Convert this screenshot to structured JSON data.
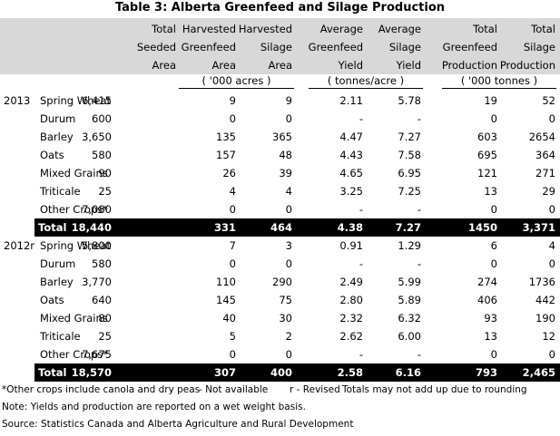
{
  "title": "Table 3:  Alberta Greenfeed and Silage Production",
  "headers": [
    [
      "",
      "Total",
      "Seeded",
      "Area"
    ],
    [
      "",
      "Harvested",
      "Greenfeed",
      "Area"
    ],
    [
      "",
      "Harvested",
      "Silage",
      "Area"
    ],
    [
      "",
      "Average",
      "Greenfeed",
      "Yield"
    ],
    [
      "",
      "Average",
      "Silage",
      "Yield"
    ],
    [
      "",
      "Total",
      "Greenfeed",
      "Production"
    ],
    [
      "",
      "Total",
      "Silage",
      "Production"
    ]
  ],
  "units": {
    "acres": "( '000 acres )",
    "yield": "( tonnes/acre )",
    "tonnes": "( '000 tonnes )"
  },
  "blocks": [
    {
      "year": "2013",
      "rows": [
        [
          "Spring Wheat",
          "6,415",
          "9",
          "9",
          "2.11",
          "5.78",
          "19",
          "52"
        ],
        [
          "Durum",
          "600",
          "0",
          "0",
          "-",
          "-",
          "0",
          "0"
        ],
        [
          "Barley",
          "3,650",
          "135",
          "365",
          "4.47",
          "7.27",
          "603",
          "2654"
        ],
        [
          "Oats",
          "580",
          "157",
          "48",
          "4.43",
          "7.58",
          "695",
          "364"
        ],
        [
          "Mixed Grains",
          "90",
          "26",
          "39",
          "4.65",
          "6.95",
          "121",
          "271"
        ],
        [
          "Triticale",
          "25",
          "4",
          "4",
          "3.25",
          "7.25",
          "13",
          "29"
        ],
        [
          "Other Crops*",
          "7,080",
          "0",
          "0",
          "-",
          "-",
          "0",
          "0"
        ]
      ],
      "total": [
        "Total",
        "18,440",
        "331",
        "464",
        "4.38",
        "7.27",
        "1450",
        "3,371"
      ]
    },
    {
      "year": "2012r",
      "rows": [
        [
          "Spring Wheat",
          "5,800",
          "7",
          "3",
          "0.91",
          "1.29",
          "6",
          "4"
        ],
        [
          "Durum",
          "580",
          "0",
          "0",
          "-",
          "-",
          "0",
          "0"
        ],
        [
          "Barley",
          "3,770",
          "110",
          "290",
          "2.49",
          "5.99",
          "274",
          "1736"
        ],
        [
          "Oats",
          "640",
          "145",
          "75",
          "2.80",
          "5.89",
          "406",
          "442"
        ],
        [
          "Mixed Grains",
          "80",
          "40",
          "30",
          "2.32",
          "6.32",
          "93",
          "190"
        ],
        [
          "Triticale",
          "25",
          "5",
          "2",
          "2.62",
          "6.00",
          "13",
          "12"
        ],
        [
          "Other Crops*",
          "7,675",
          "0",
          "0",
          "-",
          "-",
          "0",
          "0"
        ]
      ],
      "total": [
        "Total",
        "18,570",
        "307",
        "400",
        "2.58",
        "6.16",
        "793",
        "2,465"
      ]
    }
  ],
  "footnotes": {
    "other": "*Other crops include canola and dry peas",
    "na": "- Not available",
    "revised": "r - Revised",
    "rounding": "Totals may not add up due to rounding",
    "note": "Note:  Yields and production are reported on a wet weight basis.",
    "source": "Source: Statistics Canada and Alberta Agriculture and Rural Development"
  }
}
